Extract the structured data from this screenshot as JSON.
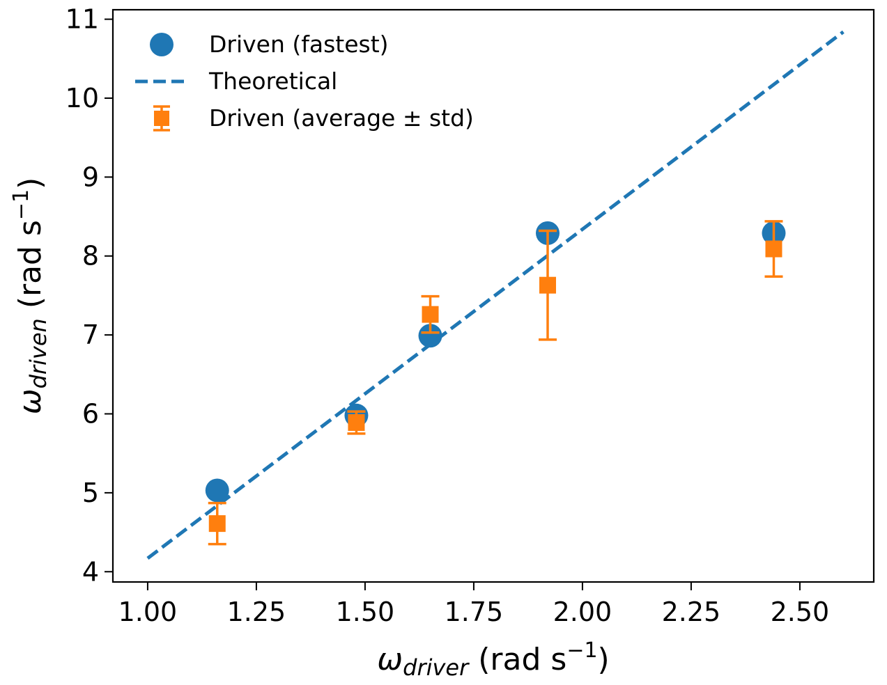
{
  "chart_data": {
    "type": "scatter",
    "xlim": [
      0.92,
      2.67
    ],
    "ylim": [
      3.87,
      11.12
    ],
    "x_ticks": [
      1.0,
      1.25,
      1.5,
      1.75,
      2.0,
      2.25,
      2.5
    ],
    "x_tick_labels": [
      "1.00",
      "1.25",
      "1.50",
      "1.75",
      "2.00",
      "2.25",
      "2.50"
    ],
    "y_ticks": [
      4,
      5,
      6,
      7,
      8,
      9,
      10,
      11
    ],
    "y_tick_labels": [
      "4",
      "5",
      "6",
      "7",
      "8",
      "9",
      "10",
      "11"
    ],
    "xlabel": {
      "symbol": "ω",
      "subscript": "driver",
      "unit": " (rad s",
      "exponent": "−1",
      "close": ")"
    },
    "ylabel": {
      "symbol": "ω",
      "subscript": "driven",
      "unit": " (rad s",
      "exponent": "−1",
      "close": ")"
    },
    "grid": false,
    "legend_position": "top-left",
    "series": [
      {
        "name": "Driven (fastest)",
        "kind": "points",
        "marker": "circle",
        "color": "#1f77b4",
        "x": [
          1.16,
          1.48,
          1.65,
          1.92,
          2.44
        ],
        "y": [
          5.03,
          5.98,
          6.99,
          8.29,
          8.29
        ]
      },
      {
        "name": "Theoretical",
        "kind": "line",
        "style": "dashed",
        "color": "#1f77b4",
        "x": [
          1.0,
          2.6
        ],
        "y": [
          4.17,
          10.84
        ]
      },
      {
        "name": "Driven (average ± std)",
        "kind": "errorbar",
        "marker": "square",
        "color": "#ff7f0e",
        "x": [
          1.16,
          1.48,
          1.65,
          1.92,
          2.44
        ],
        "y": [
          4.61,
          5.89,
          7.26,
          7.63,
          8.09
        ],
        "err": [
          0.26,
          0.14,
          0.23,
          0.69,
          0.35
        ]
      }
    ]
  }
}
